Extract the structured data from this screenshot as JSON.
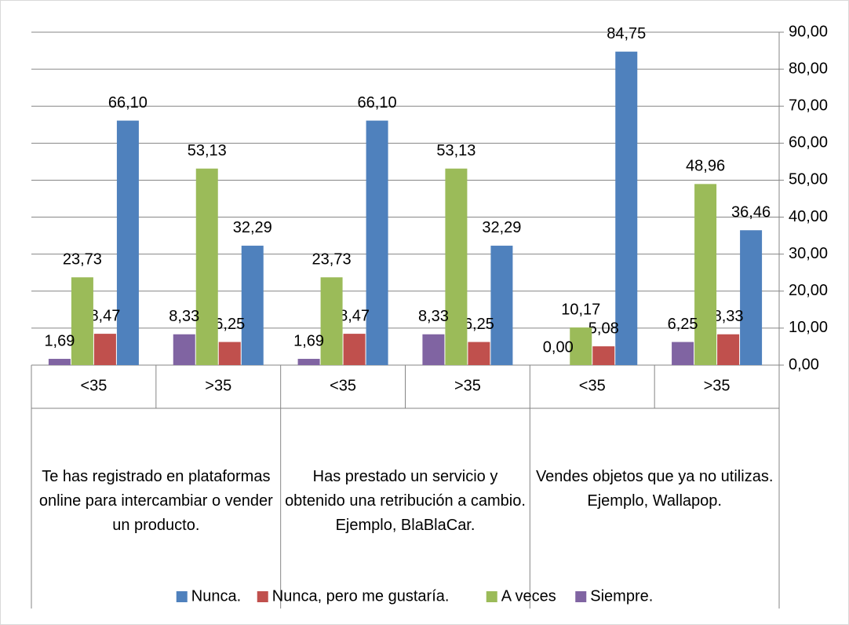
{
  "chart_data": {
    "type": "bar",
    "categories": [
      "<35",
      ">35",
      "<35",
      ">35",
      "<35",
      ">35"
    ],
    "groups": [
      "Te has registrado en plataformas online para intercambiar o vender un producto.",
      "Has prestado un servicio y obtenido una retribución a cambio. Ejemplo, BlaBlaCar.",
      "Vendes objetos que ya no utilizas. Ejemplo, Wallapop."
    ],
    "series": [
      {
        "name": "Nunca.",
        "color": "#4f81bd",
        "values": [
          66.1,
          32.29,
          66.1,
          32.29,
          84.75,
          36.46
        ],
        "value_labels": [
          "66,10",
          "32,29",
          "66,10",
          "32,29",
          "84,75",
          "36,46"
        ]
      },
      {
        "name": "Nunca, pero me gustaría.",
        "color": "#c0504d",
        "values": [
          8.47,
          6.25,
          8.47,
          6.25,
          5.08,
          8.33
        ],
        "value_labels": [
          "8,47",
          "6,25",
          "8,47",
          "6,25",
          "5,08",
          "8,33"
        ]
      },
      {
        "name": "A veces",
        "color": "#9bbb59",
        "values": [
          23.73,
          53.13,
          23.73,
          53.13,
          10.17,
          48.96
        ],
        "value_labels": [
          "23,73",
          "53,13",
          "23,73",
          "53,13",
          "10,17",
          "48,96"
        ]
      },
      {
        "name": "Siempre.",
        "color": "#8064a2",
        "values": [
          1.69,
          8.33,
          1.69,
          8.33,
          0.0,
          6.25
        ],
        "value_labels": [
          "1,69",
          "8,33",
          "1,69",
          "8,33",
          "0,00",
          "6,25"
        ]
      }
    ],
    "ylim": [
      0,
      90
    ],
    "yticks": [
      {
        "value": 0,
        "label": "0,00"
      },
      {
        "value": 10,
        "label": "10,00"
      },
      {
        "value": 20,
        "label": "20,00"
      },
      {
        "value": 30,
        "label": "30,00"
      },
      {
        "value": 40,
        "label": "40,00"
      },
      {
        "value": 50,
        "label": "50,00"
      },
      {
        "value": 60,
        "label": "60,00"
      },
      {
        "value": 70,
        "label": "70,00"
      },
      {
        "value": 80,
        "label": "80,00"
      },
      {
        "value": 90,
        "label": "90,00"
      }
    ],
    "grid": true,
    "legend": "bottom"
  }
}
